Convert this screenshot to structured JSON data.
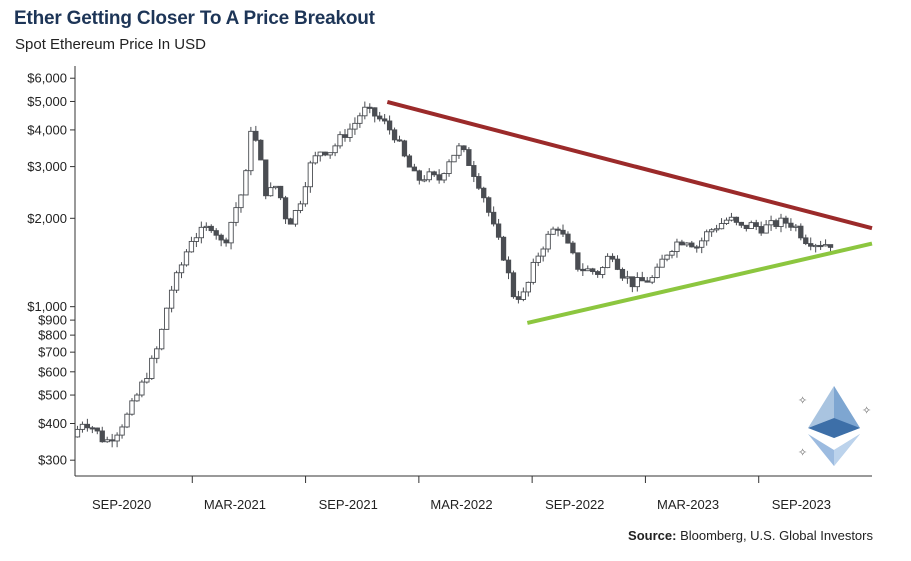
{
  "chart_data": {
    "type": "candlestick",
    "title": "Ether Getting Closer To A Price Breakout",
    "subtitle": "Spot Ethereum Price In USD",
    "source_label": "Source:",
    "source_text": "Bloomberg, U.S. Global Investors",
    "y_scale": "log",
    "ylim": [
      265,
      6300
    ],
    "y_ticks": [
      {
        "value": 300,
        "label": "$300"
      },
      {
        "value": 400,
        "label": "$400"
      },
      {
        "value": 500,
        "label": "$500"
      },
      {
        "value": 600,
        "label": "$600"
      },
      {
        "value": 700,
        "label": "$700"
      },
      {
        "value": 800,
        "label": "$800"
      },
      {
        "value": 900,
        "label": "$900"
      },
      {
        "value": 1000,
        "label": "$1,000"
      },
      {
        "value": 2000,
        "label": "$2,000"
      },
      {
        "value": 3000,
        "label": "$3,000"
      },
      {
        "value": 4000,
        "label": "$4,000"
      },
      {
        "value": 5000,
        "label": "$5,000"
      },
      {
        "value": 6000,
        "label": "$6,000"
      }
    ],
    "x_ticks": [
      "SEP-2020",
      "MAR-2021",
      "SEP-2021",
      "MAR-2022",
      "SEP-2022",
      "MAR-2023",
      "SEP-2023"
    ],
    "x_month_range": [
      0,
      37
    ],
    "price_path": [
      [
        0,
        360
      ],
      [
        0.5,
        410
      ],
      [
        1,
        385
      ],
      [
        1.5,
        345
      ],
      [
        2,
        370
      ],
      [
        2.5,
        420
      ],
      [
        3,
        500
      ],
      [
        3.5,
        600
      ],
      [
        4,
        740
      ],
      [
        4.5,
        1100
      ],
      [
        5,
        1350
      ],
      [
        5.5,
        1700
      ],
      [
        6,
        1800
      ],
      [
        6.5,
        1900
      ],
      [
        7,
        1600
      ],
      [
        7.5,
        2100
      ],
      [
        8,
        2600
      ],
      [
        8.3,
        4200
      ],
      [
        8.7,
        3200
      ],
      [
        9,
        2400
      ],
      [
        9.5,
        2600
      ],
      [
        10,
        1900
      ],
      [
        10.5,
        2200
      ],
      [
        11,
        3000
      ],
      [
        11.5,
        3400
      ],
      [
        12,
        3400
      ],
      [
        12.5,
        3800
      ],
      [
        13,
        4100
      ],
      [
        13.5,
        4700
      ],
      [
        14,
        4500
      ],
      [
        14.5,
        4200
      ],
      [
        15,
        3800
      ],
      [
        15.5,
        3100
      ],
      [
        16,
        2700
      ],
      [
        16.5,
        2800
      ],
      [
        17,
        2700
      ],
      [
        17.5,
        3200
      ],
      [
        18,
        3500
      ],
      [
        18.5,
        3000
      ],
      [
        19,
        2500
      ],
      [
        19.5,
        1900
      ],
      [
        20,
        1500
      ],
      [
        20.5,
        1080
      ],
      [
        21,
        1100
      ],
      [
        21.5,
        1450
      ],
      [
        22,
        1700
      ],
      [
        22.5,
        1900
      ],
      [
        23,
        1600
      ],
      [
        23.5,
        1350
      ],
      [
        24,
        1330
      ],
      [
        24.5,
        1300
      ],
      [
        25,
        1550
      ],
      [
        25.5,
        1300
      ],
      [
        26,
        1200
      ],
      [
        26.5,
        1220
      ],
      [
        27,
        1250
      ],
      [
        27.5,
        1500
      ],
      [
        28,
        1650
      ],
      [
        28.5,
        1700
      ],
      [
        29,
        1600
      ],
      [
        29.5,
        1800
      ],
      [
        30,
        1900
      ],
      [
        30.5,
        2000
      ],
      [
        31,
        1850
      ],
      [
        31.5,
        1900
      ],
      [
        32,
        1850
      ],
      [
        32.5,
        1900
      ],
      [
        33,
        1950
      ],
      [
        33.5,
        1900
      ],
      [
        34,
        1700
      ],
      [
        34.5,
        1650
      ],
      [
        35,
        1640
      ]
    ],
    "trendlines": [
      {
        "name": "resistance",
        "color": "#9b2a2a",
        "x": [
          14.5,
          37
        ],
        "y": [
          4980,
          1850
        ]
      },
      {
        "name": "support",
        "color": "#8cc63f",
        "x": [
          21,
          37
        ],
        "y": [
          880,
          1640
        ]
      }
    ],
    "logo": "ethereum-logo"
  }
}
